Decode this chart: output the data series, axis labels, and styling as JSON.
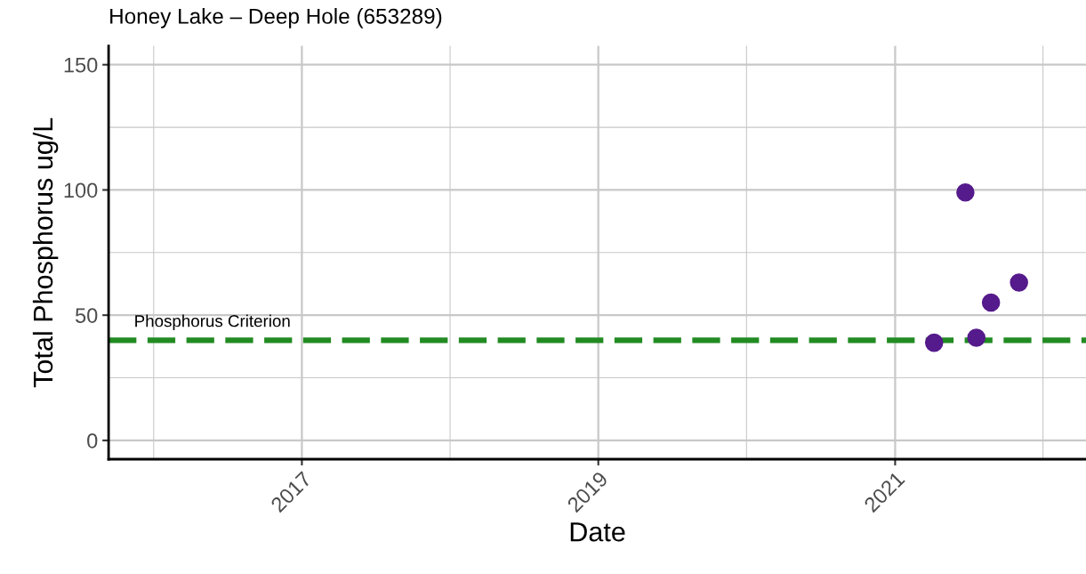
{
  "chart_data": {
    "type": "scatter",
    "title": "Honey Lake – Deep Hole (653289)",
    "xlabel": "Date",
    "ylabel": "Total Phosphorus ug/L",
    "x": [
      "2021-04-07",
      "2021-06-23",
      "2021-07-20",
      "2021-08-25",
      "2021-11-02"
    ],
    "series": [
      {
        "color": "#551a8b",
        "values": [
          39,
          99,
          41,
          55,
          63
        ]
      }
    ],
    "marker": "circle",
    "xlim": [
      "2015-09-13",
      "2022-04-16"
    ],
    "xticks": [
      {
        "value": "2017",
        "label": "2017"
      },
      {
        "value": "2019",
        "label": "2019"
      },
      {
        "value": "2021",
        "label": "2021"
      }
    ],
    "ylim": [
      -7.5,
      157.5
    ],
    "yticks": [
      0,
      50,
      100,
      150
    ],
    "ref_lines": [
      {
        "axis": "y",
        "value": 40,
        "label": "Phosphorus Criterion",
        "color": "#228b22",
        "line_style": "dashed"
      }
    ],
    "grid": true
  }
}
